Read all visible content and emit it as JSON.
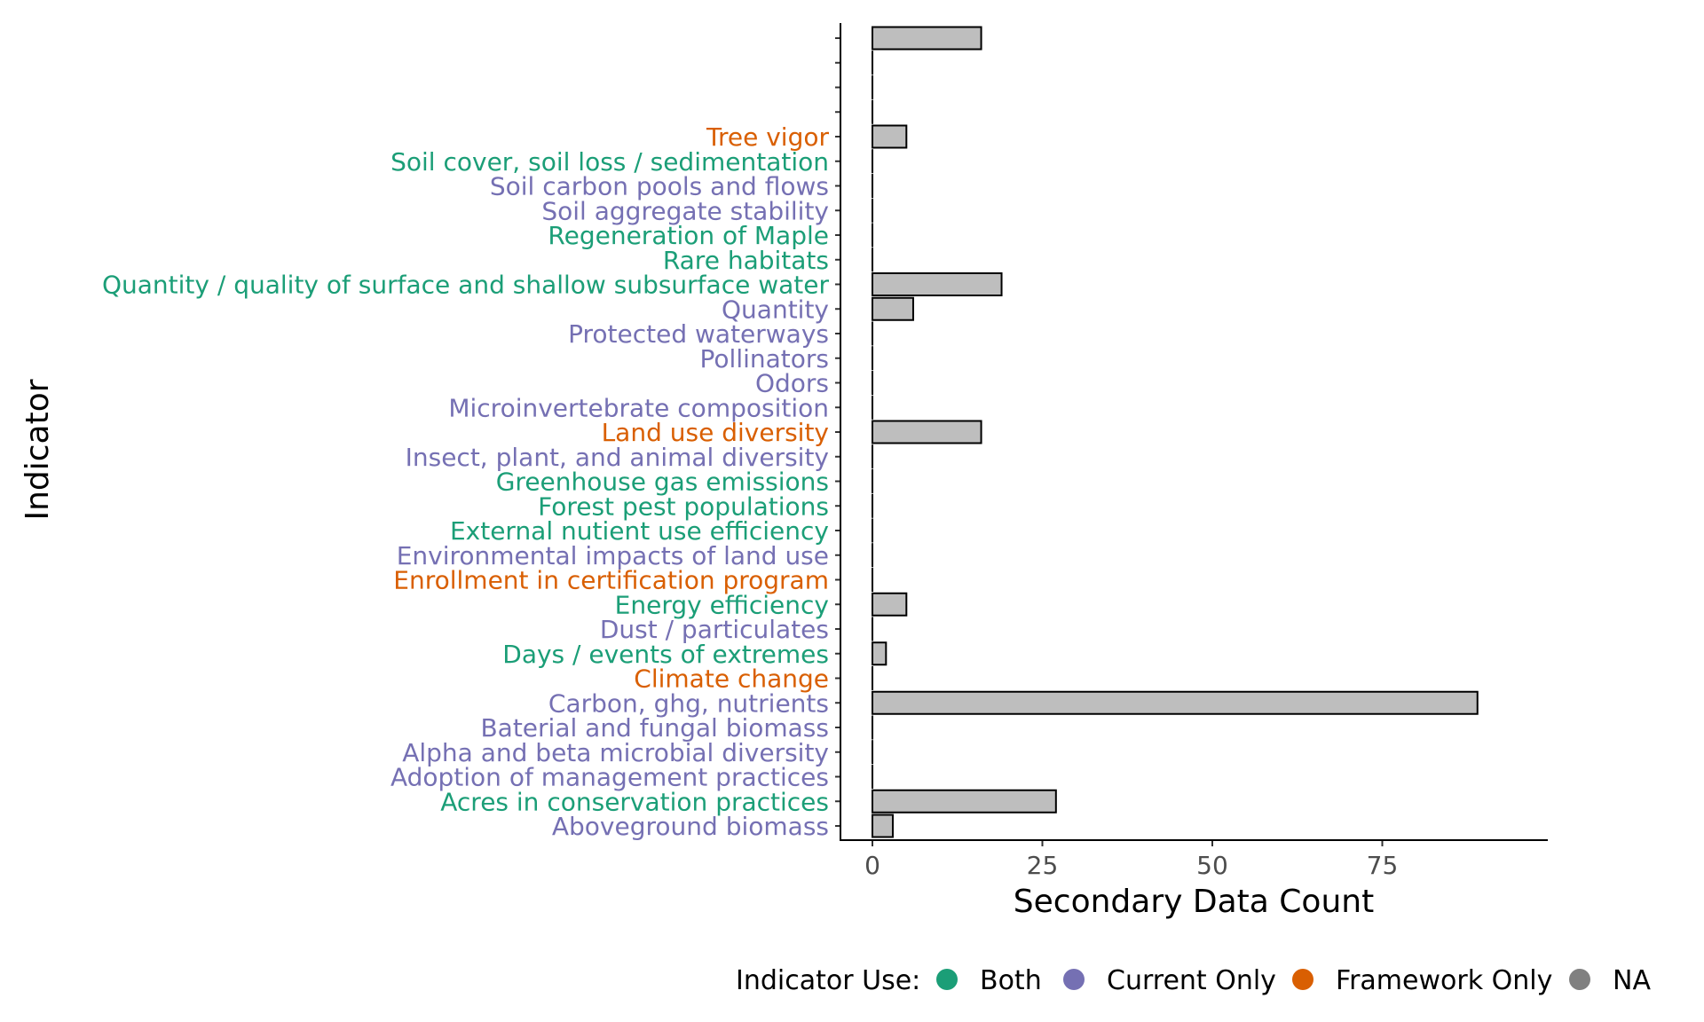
{
  "chart_data": {
    "type": "bar",
    "orientation": "horizontal",
    "xlabel": "Secondary Data Count",
    "ylabel": "Indicator",
    "xlim": [
      -5,
      95
    ],
    "x_ticks": [
      "0",
      "25",
      "50",
      "75"
    ],
    "x_tick_values": [
      0,
      25,
      50,
      75
    ],
    "bar_fill": "#bebebe",
    "bar_stroke": "#000000",
    "grid": false,
    "legend_position": "bottom",
    "legend": {
      "title": "Indicator Use:",
      "items": [
        {
          "label": "Both",
          "color": "#1b9e77"
        },
        {
          "label": "Current Only",
          "color": "#7570b3"
        },
        {
          "label": "Framework Only",
          "color": "#d95f02"
        },
        {
          "label": "NA",
          "color": "#808080"
        }
      ]
    },
    "categories_bottom_to_top": [
      {
        "label": "Aboveground biomass",
        "use": "Current Only",
        "color": "#7570b3",
        "value": 3
      },
      {
        "label": "Acres in conservation practices",
        "use": "Both",
        "color": "#1b9e77",
        "value": 27
      },
      {
        "label": "Adoption of management practices",
        "use": "Current Only",
        "color": "#7570b3",
        "value": 0
      },
      {
        "label": "Alpha and beta microbial diversity",
        "use": "Current Only",
        "color": "#7570b3",
        "value": 0
      },
      {
        "label": "Baterial and fungal biomass",
        "use": "Current Only",
        "color": "#7570b3",
        "value": 0
      },
      {
        "label": "Carbon, ghg, nutrients",
        "use": "Current Only",
        "color": "#7570b3",
        "value": 89
      },
      {
        "label": "Climate change",
        "use": "Framework Only",
        "color": "#d95f02",
        "value": 0
      },
      {
        "label": "Days / events of extremes",
        "use": "Both",
        "color": "#1b9e77",
        "value": 2
      },
      {
        "label": "Dust / particulates",
        "use": "Current Only",
        "color": "#7570b3",
        "value": 0
      },
      {
        "label": "Energy efficiency",
        "use": "Both",
        "color": "#1b9e77",
        "value": 5
      },
      {
        "label": "Enrollment in certification program",
        "use": "Framework Only",
        "color": "#d95f02",
        "value": 0
      },
      {
        "label": "Environmental impacts of land use",
        "use": "Current Only",
        "color": "#7570b3",
        "value": 0
      },
      {
        "label": "External nutient use efficiency",
        "use": "Both",
        "color": "#1b9e77",
        "value": 0
      },
      {
        "label": "Forest pest populations",
        "use": "Both",
        "color": "#1b9e77",
        "value": 0
      },
      {
        "label": "Greenhouse gas emissions",
        "use": "Both",
        "color": "#1b9e77",
        "value": 0
      },
      {
        "label": "Insect, plant, and animal diversity",
        "use": "Current Only",
        "color": "#7570b3",
        "value": 0
      },
      {
        "label": "Land use diversity",
        "use": "Framework Only",
        "color": "#d95f02",
        "value": 16
      },
      {
        "label": "Microinvertebrate composition",
        "use": "Current Only",
        "color": "#7570b3",
        "value": 0
      },
      {
        "label": "Odors",
        "use": "Current Only",
        "color": "#7570b3",
        "value": 0
      },
      {
        "label": "Pollinators",
        "use": "Current Only",
        "color": "#7570b3",
        "value": 0
      },
      {
        "label": "Protected waterways",
        "use": "Current Only",
        "color": "#7570b3",
        "value": 0
      },
      {
        "label": "Quantity",
        "use": "Current Only",
        "color": "#7570b3",
        "value": 6
      },
      {
        "label": "Quantity / quality of surface and shallow subsurface water",
        "use": "Both",
        "color": "#1b9e77",
        "value": 19
      },
      {
        "label": "Rare habitats",
        "use": "Both",
        "color": "#1b9e77",
        "value": 0
      },
      {
        "label": "Regeneration of Maple",
        "use": "Both",
        "color": "#1b9e77",
        "value": 0
      },
      {
        "label": "Soil aggregate stability",
        "use": "Current Only",
        "color": "#7570b3",
        "value": 0
      },
      {
        "label": "Soil carbon pools and flows",
        "use": "Current Only",
        "color": "#7570b3",
        "value": 0
      },
      {
        "label": "Soil cover, soil loss / sedimentation",
        "use": "Both",
        "color": "#1b9e77",
        "value": 0
      },
      {
        "label": "Tree vigor",
        "use": "Framework Only",
        "color": "#d95f02",
        "value": 5
      },
      {
        "label": "",
        "use": "NA",
        "color": "#808080",
        "value": 0
      },
      {
        "label": "",
        "use": "NA",
        "color": "#808080",
        "value": 0
      },
      {
        "label": "",
        "use": "NA",
        "color": "#808080",
        "value": 0
      },
      {
        "label": "",
        "use": "NA",
        "color": "#808080",
        "value": 16
      }
    ]
  }
}
